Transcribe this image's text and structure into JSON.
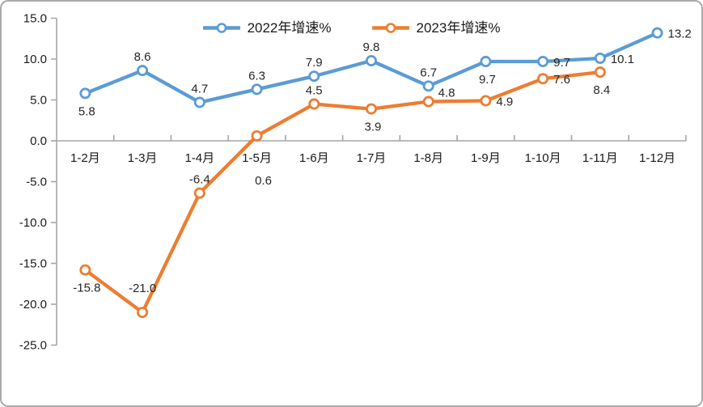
{
  "chart_data": {
    "type": "line",
    "title": "",
    "categories": [
      "1-2月",
      "1-3月",
      "1-4月",
      "1-5月",
      "1-6月",
      "1-7月",
      "1-8月",
      "1-9月",
      "1-10月",
      "1-11月",
      "1-12月"
    ],
    "series": [
      {
        "name": "2022年增速%",
        "color": "#5B9BD5",
        "values": [
          5.8,
          8.6,
          4.7,
          6.3,
          7.9,
          9.8,
          6.7,
          9.7,
          9.7,
          10.1,
          13.2
        ],
        "labels": [
          "5.8",
          "8.6",
          "4.7",
          "6.3",
          "7.9",
          "9.8",
          "6.7",
          "9.7",
          "9.7",
          "10.1",
          "13.2"
        ],
        "label_positions": [
          "below",
          "above",
          "above",
          "above",
          "above",
          "above",
          "above",
          "below",
          "right",
          "right",
          "right"
        ]
      },
      {
        "name": "2023年增速%",
        "color": "#ED7D31",
        "values": [
          -15.8,
          -21.0,
          -6.4,
          0.6,
          4.5,
          3.9,
          4.8,
          4.9,
          7.6,
          8.4
        ],
        "labels": [
          "-15.8",
          "-21.0",
          "-6.4",
          "0.6",
          "4.5",
          "3.9",
          "4.8",
          "4.9",
          "7.6",
          "8.4"
        ],
        "label_positions": [
          "below",
          "above-far",
          "above",
          "below-far",
          "above",
          "below",
          "above-right",
          "right",
          "right",
          "below"
        ]
      }
    ],
    "yaxis": {
      "min": -25,
      "max": 15,
      "step": 5,
      "tick_labels": [
        "15.0",
        "10.0",
        "5.0",
        "0.0",
        "-5.0",
        "-10.0",
        "-15.0",
        "-20.0",
        "-25.0"
      ]
    },
    "xlabel": "",
    "ylabel": "",
    "legend_position": "top",
    "grid": false,
    "axis_color": "#a6a6a6",
    "marker_fill": "#ffffff"
  }
}
